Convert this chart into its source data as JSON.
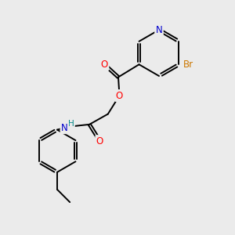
{
  "bg_color": "#ebebeb",
  "atom_colors": {
    "C": "#000000",
    "N": "#0000cc",
    "O": "#ff0000",
    "Br": "#cc7700",
    "H": "#008888"
  },
  "bond_color": "#000000",
  "bond_width": 1.4,
  "dbo": 0.055,
  "font_size": 8.5
}
